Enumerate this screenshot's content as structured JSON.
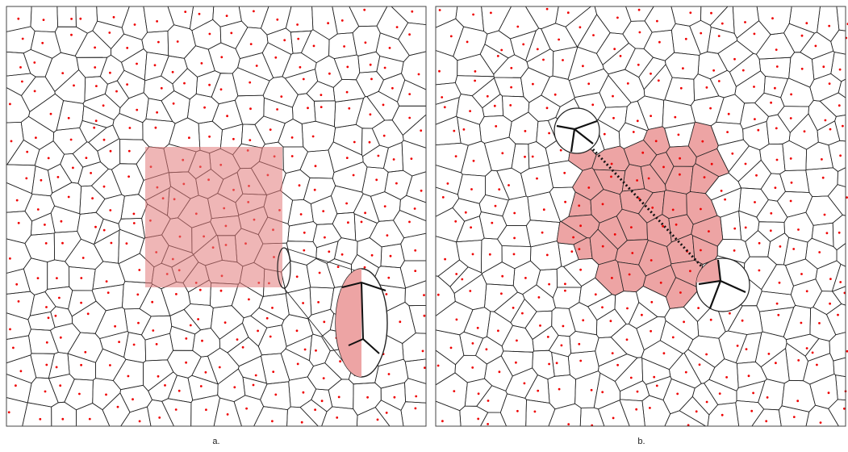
{
  "panels": [
    {
      "label": "a."
    },
    {
      "label": "b."
    }
  ]
}
